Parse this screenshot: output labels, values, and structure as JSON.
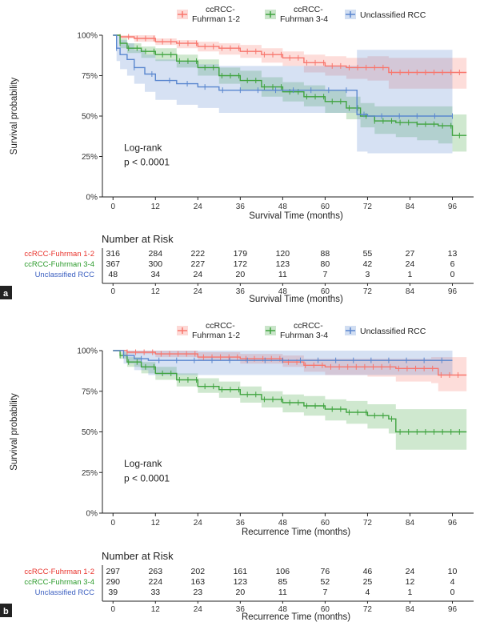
{
  "chart_data": [
    {
      "panel": "a",
      "type": "line",
      "subtype": "kaplan-meier",
      "xlabel": "Survival Time (months)",
      "ylabel": "Survival probability",
      "xticks": [
        0,
        12,
        24,
        36,
        48,
        60,
        72,
        84,
        96
      ],
      "yticks": [
        "0%",
        "25%",
        "50%",
        "75%",
        "100%"
      ],
      "xlim": [
        -3,
        102
      ],
      "ylim": [
        0,
        1.0
      ],
      "annotation": [
        "Log-rank",
        "p < 0.0001"
      ],
      "legend": [
        "ccRCC-\nFuhrman 1-2",
        "ccRCC-\nFuhrman 3-4",
        "Unclassified RCC"
      ],
      "series": [
        {
          "name": "ccRCC-Fuhrman 1-2",
          "color": "#f8766d",
          "x": [
            0,
            2,
            6,
            12,
            18,
            24,
            30,
            36,
            42,
            48,
            54,
            60,
            66,
            72,
            78,
            84,
            90,
            96,
            100
          ],
          "y": [
            1.0,
            0.99,
            0.98,
            0.96,
            0.95,
            0.93,
            0.92,
            0.9,
            0.88,
            0.86,
            0.83,
            0.81,
            0.8,
            0.8,
            0.77,
            0.77,
            0.77,
            0.77,
            0.77
          ],
          "lower": [
            1.0,
            0.98,
            0.96,
            0.94,
            0.92,
            0.9,
            0.88,
            0.86,
            0.83,
            0.81,
            0.77,
            0.75,
            0.73,
            0.72,
            0.67,
            0.67,
            0.67,
            0.67,
            0.67
          ],
          "upper": [
            1.0,
            1.0,
            1.0,
            0.98,
            0.97,
            0.96,
            0.95,
            0.94,
            0.92,
            0.9,
            0.88,
            0.87,
            0.86,
            0.87,
            0.86,
            0.86,
            0.86,
            0.86,
            0.86
          ]
        },
        {
          "name": "ccRCC-Fuhrman 3-4",
          "color": "#3fa33f",
          "x": [
            0,
            2,
            4,
            8,
            12,
            18,
            24,
            30,
            36,
            42,
            48,
            54,
            60,
            66,
            70,
            74,
            80,
            86,
            92,
            96,
            100
          ],
          "y": [
            1.0,
            0.95,
            0.92,
            0.9,
            0.88,
            0.84,
            0.8,
            0.75,
            0.72,
            0.68,
            0.65,
            0.62,
            0.59,
            0.55,
            0.5,
            0.47,
            0.46,
            0.45,
            0.44,
            0.38,
            0.38
          ],
          "lower": [
            1.0,
            0.92,
            0.89,
            0.86,
            0.84,
            0.8,
            0.75,
            0.7,
            0.66,
            0.62,
            0.59,
            0.56,
            0.52,
            0.48,
            0.43,
            0.39,
            0.37,
            0.35,
            0.33,
            0.28,
            0.28
          ],
          "upper": [
            1.0,
            0.98,
            0.95,
            0.93,
            0.92,
            0.88,
            0.85,
            0.8,
            0.78,
            0.74,
            0.71,
            0.69,
            0.66,
            0.62,
            0.58,
            0.56,
            0.56,
            0.56,
            0.56,
            0.51,
            0.51
          ]
        },
        {
          "name": "Unclassified RCC",
          "color": "#5a87cf",
          "x": [
            0,
            1,
            2,
            4,
            6,
            9,
            12,
            18,
            24,
            30,
            36,
            48,
            60,
            66,
            69,
            72,
            84,
            96
          ],
          "y": [
            1.0,
            0.92,
            0.88,
            0.85,
            0.8,
            0.76,
            0.72,
            0.7,
            0.68,
            0.66,
            0.66,
            0.66,
            0.66,
            0.66,
            0.51,
            0.5,
            0.5,
            0.5
          ],
          "lower": [
            1.0,
            0.84,
            0.79,
            0.75,
            0.7,
            0.65,
            0.6,
            0.57,
            0.55,
            0.52,
            0.52,
            0.52,
            0.52,
            0.52,
            0.28,
            0.27,
            0.27,
            0.27
          ],
          "upper": [
            1.0,
            1.0,
            0.97,
            0.95,
            0.91,
            0.88,
            0.85,
            0.84,
            0.82,
            0.81,
            0.81,
            0.81,
            0.81,
            0.81,
            0.91,
            0.91,
            0.91,
            0.91
          ]
        }
      ],
      "risk_table": {
        "title": "Number at Risk",
        "xlabel": "Survival Time (months)",
        "rows": [
          {
            "label": "ccRCC-Fuhrman 1-2",
            "color": "#e8322b",
            "values": [
              316,
              284,
              222,
              179,
              120,
              88,
              55,
              27,
              13
            ]
          },
          {
            "label": "ccRCC-Fuhrman 3-4",
            "color": "#2a9a2a",
            "values": [
              367,
              300,
              227,
              172,
              123,
              80,
              42,
              24,
              6
            ]
          },
          {
            "label": "Unclassified RCC",
            "color": "#3b5fc0",
            "values": [
              48,
              34,
              24,
              20,
              11,
              7,
              3,
              1,
              0
            ]
          }
        ]
      }
    },
    {
      "panel": "b",
      "type": "line",
      "subtype": "kaplan-meier",
      "xlabel": "Recurrence Time (months)",
      "ylabel": "Survival probability",
      "xticks": [
        0,
        12,
        24,
        36,
        48,
        60,
        72,
        84,
        96
      ],
      "yticks": [
        "0%",
        "25%",
        "50%",
        "75%",
        "100%"
      ],
      "xlim": [
        -3,
        102
      ],
      "ylim": [
        0,
        1.0
      ],
      "annotation": [
        "Log-rank",
        "p < 0.0001"
      ],
      "legend": [
        "ccRCC-\nFuhrman 1-2",
        "ccRCC-\nFuhrman 3-4",
        "Unclassified RCC"
      ],
      "series": [
        {
          "name": "ccRCC-Fuhrman 1-2",
          "color": "#f8766d",
          "x": [
            0,
            4,
            12,
            24,
            36,
            48,
            54,
            60,
            72,
            80,
            90,
            92,
            100
          ],
          "y": [
            1.0,
            0.99,
            0.98,
            0.96,
            0.95,
            0.93,
            0.91,
            0.9,
            0.9,
            0.89,
            0.89,
            0.85,
            0.85
          ],
          "lower": [
            1.0,
            0.98,
            0.96,
            0.94,
            0.92,
            0.9,
            0.87,
            0.85,
            0.84,
            0.81,
            0.8,
            0.75,
            0.75
          ],
          "upper": [
            1.0,
            1.0,
            1.0,
            0.99,
            0.98,
            0.97,
            0.95,
            0.95,
            0.95,
            0.95,
            0.96,
            0.96,
            0.96
          ]
        },
        {
          "name": "ccRCC-Fuhrman 3-4",
          "color": "#3fa33f",
          "x": [
            0,
            2,
            4,
            8,
            12,
            18,
            24,
            30,
            36,
            42,
            48,
            54,
            60,
            66,
            72,
            78,
            80,
            86,
            92,
            100
          ],
          "y": [
            1.0,
            0.97,
            0.93,
            0.9,
            0.86,
            0.82,
            0.78,
            0.76,
            0.73,
            0.7,
            0.68,
            0.66,
            0.64,
            0.62,
            0.6,
            0.58,
            0.5,
            0.5,
            0.5,
            0.5
          ],
          "lower": [
            1.0,
            0.95,
            0.9,
            0.86,
            0.82,
            0.78,
            0.74,
            0.71,
            0.68,
            0.65,
            0.62,
            0.6,
            0.57,
            0.55,
            0.52,
            0.49,
            0.39,
            0.39,
            0.39,
            0.39
          ],
          "upper": [
            1.0,
            0.99,
            0.96,
            0.93,
            0.9,
            0.86,
            0.83,
            0.81,
            0.78,
            0.75,
            0.73,
            0.72,
            0.7,
            0.69,
            0.67,
            0.67,
            0.64,
            0.64,
            0.64,
            0.64
          ]
        },
        {
          "name": "Unclassified RCC",
          "color": "#5a87cf",
          "x": [
            0,
            3,
            6,
            10,
            96
          ],
          "y": [
            1.0,
            0.97,
            0.95,
            0.94,
            0.94
          ],
          "lower": [
            1.0,
            0.92,
            0.88,
            0.85,
            0.85
          ],
          "upper": [
            1.0,
            1.0,
            1.0,
            1.0,
            1.0
          ]
        }
      ],
      "risk_table": {
        "title": "Number at Risk",
        "xlabel": "Recurrence Time (months)",
        "rows": [
          {
            "label": "ccRCC-Fuhrman 1-2",
            "color": "#e8322b",
            "values": [
              297,
              263,
              202,
              161,
              106,
              76,
              46,
              24,
              10
            ]
          },
          {
            "label": "ccRCC-Fuhrman 3-4",
            "color": "#2a9a2a",
            "values": [
              290,
              224,
              163,
              123,
              85,
              52,
              25,
              12,
              4
            ]
          },
          {
            "label": "Unclassified RCC",
            "color": "#3b5fc0",
            "values": [
              39,
              33,
              23,
              20,
              11,
              7,
              4,
              1,
              0
            ]
          }
        ]
      }
    }
  ]
}
